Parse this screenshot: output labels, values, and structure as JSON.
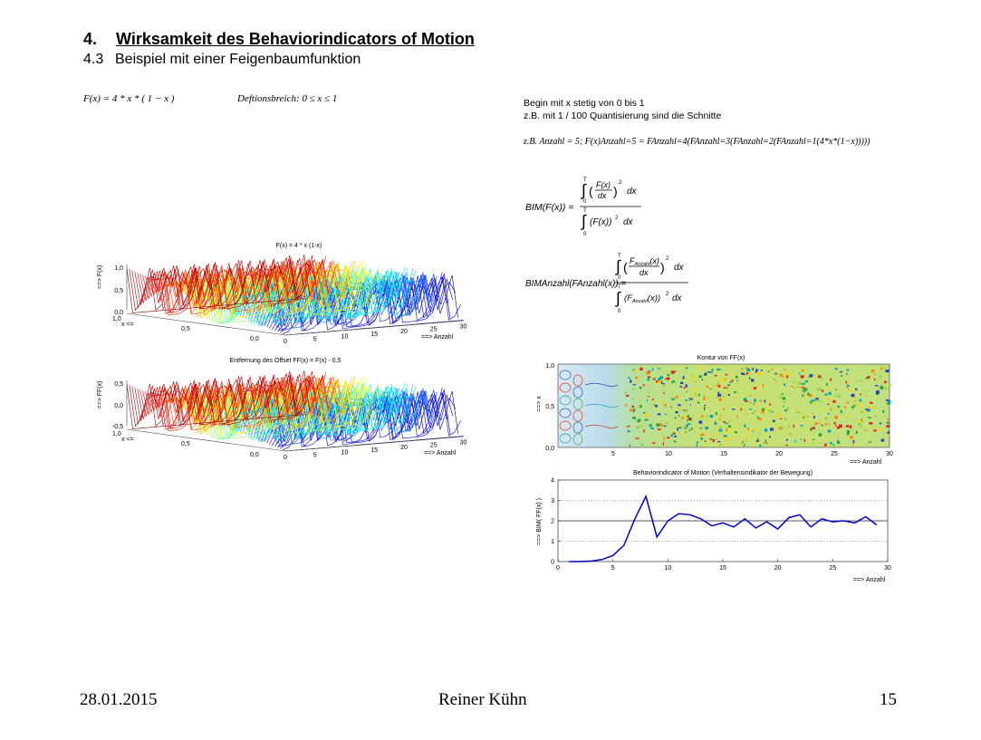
{
  "heading": {
    "number": "4.",
    "text": "Wirksamkeit des Behaviorindicators of Motion"
  },
  "subheading": {
    "number": "4.3",
    "text": "Beispiel mit einer Feigenbaumfunktion"
  },
  "formulas": {
    "function": "F(x) = 4 * x * ( 1 − x )",
    "domain": "Deftionsbreich: 0 ≤ x ≤ 1",
    "example": "z.B. Anzahl = 5;  F(x)Anzahl=5 = FAnzahl=4(FAnzahl=3(FAnzahl=2(FAnzahl=1(4*x*(1−x)))))",
    "bim_lhs": "BIM(F(x)) =",
    "bim_anzahl_lhs": "BIMAnzahl(FAnzahl(x)) ="
  },
  "notes": {
    "line1": "Begin mit x stetig von 0 bis 1",
    "line2": "z.B. mit 1 / 100 Quantisierung sind die Schnitte"
  },
  "plots": {
    "surface1": {
      "title": "F(x) = 4 * x (1-x)",
      "zlabel": "==> F(x)",
      "xlabel": "x <=",
      "ylabel": "==> Anzahl",
      "zticks": [
        "1,0",
        "0,5",
        "0,0"
      ],
      "xticks": [
        "1,0",
        "0,5",
        "0,0"
      ],
      "yticks": [
        "0",
        "5",
        "10",
        "15",
        "20",
        "25",
        "30"
      ]
    },
    "surface2": {
      "title": "Entfernung des Offset FF(x) = F(x) - 0,5",
      "zlabel": "==> FF(x)",
      "xlabel": "x <=",
      "ylabel": "==> Anzahl",
      "zticks": [
        "0,5",
        "0,0",
        "-0,5"
      ],
      "xticks": [
        "1,0",
        "0,5",
        "0,0"
      ],
      "yticks": [
        "0",
        "5",
        "10",
        "15",
        "20",
        "25",
        "30"
      ]
    },
    "contour": {
      "title": "Kontur von FF(x)",
      "ylabel": "==> x",
      "xlabel": "==> Anzahl",
      "yticks": [
        "1,0",
        "0,5",
        "0,0"
      ],
      "xticks": [
        "5",
        "10",
        "15",
        "20",
        "25",
        "30"
      ]
    }
  },
  "chart_data": {
    "type": "line",
    "title": "Behaviorindicator of Motion  (Verhaltensindikator der Bewegung)",
    "xlabel": "==> Anzahl",
    "ylabel": "==> BIM( FF(x) )",
    "xlim": [
      0,
      30
    ],
    "ylim": [
      0,
      4
    ],
    "xticks": [
      "0",
      "5",
      "10",
      "15",
      "20",
      "25",
      "30"
    ],
    "yticks": [
      "0",
      "1",
      "2",
      "3",
      "4"
    ],
    "reference_lines": [
      1,
      2,
      3
    ],
    "series": [
      {
        "color": "#0000c8",
        "x": [
          1,
          2,
          3,
          4,
          5,
          6,
          7,
          8,
          9,
          10,
          11,
          12,
          13,
          14,
          15,
          16,
          17,
          18,
          19,
          20,
          21,
          22,
          23,
          24,
          25,
          26,
          27,
          28,
          29
        ],
        "y": [
          0.0,
          0.0,
          0.02,
          0.1,
          0.3,
          0.8,
          2.1,
          3.2,
          1.2,
          2.0,
          2.35,
          2.3,
          2.1,
          1.75,
          1.9,
          1.7,
          2.1,
          1.65,
          1.95,
          1.6,
          2.15,
          2.3,
          1.7,
          2.1,
          1.95,
          2.0,
          1.9,
          2.2,
          1.8
        ]
      }
    ]
  },
  "footer": {
    "date": "28.01.2015",
    "author": "Reiner Kühn",
    "page": "15"
  }
}
